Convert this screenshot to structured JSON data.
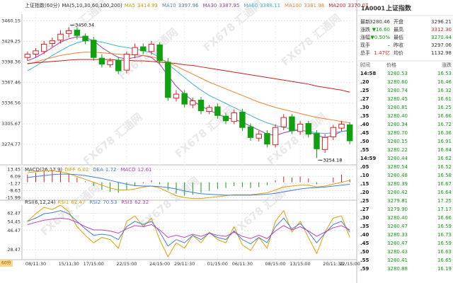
{
  "chart_data": [
    {
      "type": "candlestick",
      "title": "上证指数(60分)",
      "indicator": "MA(5,10,30,60,100,200)",
      "categories": [
        null,
        "08/11:30",
        null,
        null,
        null,
        "15/11:30",
        null,
        null,
        "17/15:00",
        null,
        null,
        null,
        "22/15:00",
        null,
        null,
        null,
        "24/15:00",
        null,
        null,
        "29/11:30",
        null,
        null,
        null,
        "01/15:00",
        null,
        null,
        "06/11:30",
        null,
        null,
        null,
        "08/15:00",
        null,
        null,
        "13/15:00",
        null,
        null,
        null,
        "20/11:30",
        null,
        "22/15:00"
      ],
      "open": [
        3405,
        3410,
        3414,
        3426,
        3431,
        3441,
        3446,
        3437,
        3431,
        3404,
        3394,
        3401,
        3386,
        3409,
        3421,
        3414,
        3424,
        3398,
        3344,
        3351,
        3334,
        3341,
        3324,
        3331,
        3317,
        3309,
        3323,
        3301,
        3284,
        3291,
        3274,
        3301,
        3316,
        3294,
        3306,
        3291,
        3267,
        3286,
        3299,
        3304
      ],
      "high": [
        3414,
        3419,
        3430,
        3435,
        3446,
        3450.34,
        3450,
        3441,
        3436,
        3410,
        3404,
        3406,
        3414,
        3426,
        3426,
        3430,
        3428,
        3404,
        3356,
        3356,
        3345,
        3346,
        3334,
        3336,
        3322,
        3327,
        3328,
        3306,
        3295,
        3296,
        3305,
        3320,
        3320,
        3310,
        3310,
        3296,
        3290,
        3304,
        3310,
        3308
      ],
      "low": [
        3400,
        3405,
        3410,
        3421,
        3426,
        3435,
        3432,
        3425,
        3400,
        3390,
        3390,
        3380,
        3381,
        3404,
        3410,
        3409,
        3395,
        3340,
        3339,
        3330,
        3329,
        3320,
        3320,
        3313,
        3305,
        3305,
        3295,
        3280,
        3279,
        3270,
        3270,
        3296,
        3290,
        3289,
        3285,
        3254.18,
        3262,
        3281,
        3294,
        3275
      ],
      "close": [
        3410,
        3415,
        3425,
        3430,
        3440,
        3445,
        3438,
        3430,
        3405,
        3395,
        3400,
        3385,
        3410,
        3420,
        3415,
        3425,
        3400,
        3345,
        3350,
        3335,
        3340,
        3325,
        3330,
        3318,
        3310,
        3322,
        3300,
        3285,
        3290,
        3275,
        3300,
        3315,
        3295,
        3305,
        3290,
        3268,
        3285,
        3300,
        3305,
        3280
      ],
      "series": [
        {
          "name": "MA5",
          "value": 3414.93,
          "color": "#c8a000"
        },
        {
          "name": "MA10",
          "value": 3397.96,
          "color": "#5a7fa8"
        },
        {
          "name": "MA30",
          "value": 3387.95,
          "color": "#9a3fb5",
          "values": [
            3400,
            3405,
            3412,
            3420,
            3428,
            3433,
            3436,
            3435,
            3430,
            3420,
            3412,
            3405,
            3403,
            3405,
            3408,
            3405,
            3395,
            3378,
            3362,
            3350,
            3340,
            3332,
            3326,
            3320,
            3315,
            3312,
            3308,
            3302,
            3296,
            3290,
            3288,
            3292,
            3295,
            3296,
            3294,
            3288,
            3285,
            3288,
            3294,
            3296
          ]
        },
        {
          "name": "MA60",
          "value": 3388.11,
          "color": "#3fb0d9",
          "values": [
            3385,
            3392,
            3400,
            3408,
            3415,
            3422,
            3427,
            3430,
            3430,
            3428,
            3425,
            3422,
            3420,
            3418,
            3415,
            3412,
            3405,
            3395,
            3385,
            3375,
            3365,
            3356,
            3348,
            3342,
            3336,
            3330,
            3324,
            3318,
            3312,
            3307,
            3303,
            3300,
            3298,
            3296,
            3294,
            3292,
            3291,
            3292,
            3294,
            3295
          ]
        },
        {
          "name": "MA100",
          "value": 3381.98,
          "color": "#f08030",
          "values": [
            3395,
            3398,
            3402,
            3405,
            3408,
            3410,
            3412,
            3413,
            3413,
            3412,
            3411,
            3410,
            3409,
            3409,
            3408,
            3406,
            3403,
            3398,
            3392,
            3386,
            3380,
            3374,
            3368,
            3363,
            3358,
            3353,
            3348,
            3343,
            3338,
            3334,
            3330,
            3327,
            3324,
            3321,
            3318,
            3315,
            3313,
            3311,
            3309,
            3307
          ]
        },
        {
          "name": "MA200",
          "value": 3370.07,
          "color": "#c81e1e",
          "values": [
            3396,
            3397,
            3398,
            3399,
            3400,
            3401,
            3402,
            3402,
            3402,
            3402,
            3402,
            3401,
            3401,
            3400,
            3400,
            3399,
            3398,
            3397,
            3396,
            3394,
            3393,
            3391,
            3389,
            3387,
            3385,
            3383,
            3381,
            3379,
            3377,
            3375,
            3373,
            3371,
            3369,
            3367,
            3365,
            3362,
            3360,
            3358,
            3356,
            3353
          ]
        }
      ],
      "up_color": "#e02020",
      "down_color": "#10a010",
      "ylim": [
        3245,
        3470
      ],
      "yticks": [
        3460.15,
        3429.25,
        3398.36,
        3367.46,
        3336.56,
        3305.67,
        3274.77
      ],
      "annotations": [
        3450.34,
        3254.18
      ],
      "grid": true
    },
    {
      "type": "macd",
      "title": "MACD(26,12,9)",
      "series": [
        {
          "name": "DIFF",
          "value": 6.02,
          "color": "#e0a000",
          "values": [
            10,
            11,
            12,
            12,
            11,
            9,
            6,
            3,
            0,
            -3,
            -6,
            -8,
            -8,
            -7,
            -5,
            -4,
            -6,
            -10,
            -14,
            -16,
            -17,
            -17,
            -16,
            -15,
            -14,
            -13,
            -13,
            -13,
            -12,
            -11,
            -8,
            -5,
            -4,
            -3,
            -3,
            -5,
            -4,
            -2,
            0,
            2
          ]
        },
        {
          "name": "DEA",
          "value": 1.72,
          "color": "#3f7fd9",
          "values": [
            5,
            6,
            7,
            8,
            8.5,
            8.5,
            8,
            7,
            5.5,
            4,
            2,
            0,
            -2,
            -3.5,
            -4,
            -4,
            -4.5,
            -5.5,
            -7,
            -9,
            -10.5,
            -12,
            -12.5,
            -13,
            -13.5,
            -13.5,
            -13.5,
            -13.5,
            -13,
            -12.5,
            -11.5,
            -10,
            -8.5,
            -7,
            -6,
            -5.5,
            -5,
            -4,
            -3,
            -2
          ]
        },
        {
          "name": "MACD",
          "value": 12.61,
          "color": "#c040c0",
          "values": [
            8,
            10,
            12,
            13,
            12,
            9,
            5,
            1,
            -4,
            -8,
            -10,
            -11,
            -8,
            -4,
            -1,
            2,
            -2,
            -8,
            -12,
            -14,
            -13,
            -11,
            -9,
            -7,
            -6,
            -4,
            -5,
            -6,
            -5,
            -3,
            2,
            6,
            5,
            6,
            4,
            -2,
            0,
            5,
            8,
            3
          ]
        }
      ],
      "up_color": "#e02020",
      "down_color": "#10a010",
      "ylim": [
        -18,
        16
      ],
      "yticks": [
        13.45,
        6.09,
        -1.27,
        -8.63,
        -15.99
      ]
    },
    {
      "type": "line",
      "title": "RSI(6,12,24)",
      "series": [
        {
          "name": "RSI1",
          "value": 62.47,
          "color": "#e0a000",
          "values": [
            55,
            62,
            68,
            66,
            70,
            64,
            50,
            42,
            35,
            40,
            38,
            30,
            55,
            60,
            50,
            58,
            38,
            22,
            35,
            30,
            42,
            35,
            45,
            38,
            35,
            50,
            33,
            28,
            40,
            30,
            55,
            65,
            45,
            55,
            40,
            25,
            45,
            58,
            60,
            40
          ]
        },
        {
          "name": "RSI2",
          "value": 70.53,
          "color": "#3f7fd9",
          "values": [
            55,
            58,
            62,
            63,
            65,
            62,
            55,
            48,
            42,
            43,
            42,
            38,
            50,
            55,
            52,
            55,
            45,
            32,
            38,
            35,
            42,
            38,
            44,
            40,
            38,
            46,
            38,
            34,
            40,
            35,
            50,
            58,
            48,
            53,
            45,
            35,
            44,
            52,
            55,
            45
          ]
        },
        {
          "name": "RSI3",
          "value": 62.32,
          "color": "#c040c0",
          "values": [
            52,
            54,
            56,
            57,
            58,
            57,
            54,
            50,
            47,
            47,
            46,
            44,
            48,
            51,
            50,
            52,
            47,
            40,
            42,
            40,
            43,
            41,
            44,
            42,
            41,
            45,
            41,
            39,
            42,
            39,
            46,
            51,
            47,
            50,
            46,
            41,
            45,
            49,
            51,
            47
          ]
        }
      ],
      "ylim": [
        20,
        70
      ],
      "yticks": [
        62.47,
        54.45,
        46.47,
        28.47
      ]
    }
  ],
  "period": "60分",
  "watermark": "FX678 汇通网",
  "quote": {
    "code": "1A0001",
    "name": "上证指数",
    "rows": [
      [
        "最新",
        "3280.46",
        "开盘",
        "3296.21"
      ],
      [
        "涨跌",
        "▼16.60",
        "最高",
        "3312.30"
      ],
      [
        "涨幅",
        "▼0.50%",
        "最低",
        "3270.44"
      ],
      [
        "现手",
        "–",
        "昨收",
        "3297.06"
      ],
      [
        "总手",
        "1.47亿",
        "均价",
        "1132.98"
      ]
    ]
  },
  "trades": {
    "headers": [
      "时间",
      "价格",
      "涨跌"
    ],
    "rows": [
      [
        "14:58",
        "3280.53",
        "16.53"
      ],
      [
        ".20",
        "3280.60",
        "16.46"
      ],
      [
        ".25",
        "3280.74",
        "16.32"
      ],
      [
        ".27",
        "3280.45",
        "16.61"
      ],
      [
        ".30",
        "3280.81",
        "16.25"
      ],
      [
        ".35",
        "3280.40",
        "16.66"
      ],
      [
        ".40",
        "3280.34",
        "16.72"
      ],
      [
        ".45",
        "3280.70",
        "16.36"
      ],
      [
        ".50",
        "3280.15",
        "16.91"
      ],
      [
        ".55",
        "3280.22",
        "16.84"
      ],
      [
        "14:59",
        "3280.44",
        "16.62"
      ],
      [
        ".05",
        "3280.54",
        "16.52"
      ],
      [
        ".10",
        "3280.48",
        "16.58"
      ],
      [
        ".15",
        "3280.39",
        "16.67"
      ],
      [
        ".20",
        "3280.42",
        "16.64"
      ],
      [
        ".25",
        "3279.81",
        "17.25"
      ],
      [
        ".27",
        "3279.90",
        "17.17"
      ],
      [
        ".30",
        "3280.40",
        "16.66"
      ],
      [
        ".35",
        "3280.47",
        "16.59"
      ],
      [
        ".40",
        "3280.33",
        "16.73"
      ],
      [
        ".45",
        "3280.47",
        "16.59"
      ],
      [
        ".50",
        "3280.43",
        "16.63"
      ],
      [
        ".55",
        "3280.41",
        "16.65"
      ],
      [
        ".59",
        "3280.88",
        "16.19"
      ]
    ]
  }
}
